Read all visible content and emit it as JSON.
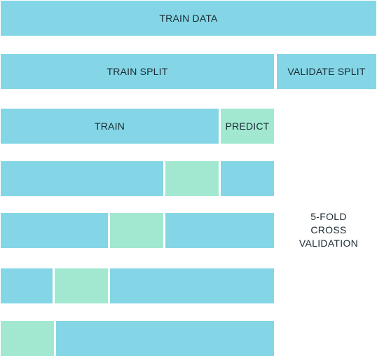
{
  "colors": {
    "train": "#84d6e6",
    "predict": "#a2e8d1",
    "text": "#1b2a33"
  },
  "labels": {
    "train_data": "TRAIN DATA",
    "train_split": "TRAIN SPLIT",
    "validate_split": "VALIDATE SPLIT",
    "train": "TRAIN",
    "predict": "PREDICT",
    "cv_line1": "5-FOLD",
    "cv_line2": "CROSS",
    "cv_line3": "VALIDATION"
  },
  "folds": [
    {
      "fold": 1,
      "predict_segment": 5
    },
    {
      "fold": 2,
      "predict_segment": 4
    },
    {
      "fold": 3,
      "predict_segment": 3
    },
    {
      "fold": 4,
      "predict_segment": 2
    },
    {
      "fold": 5,
      "predict_segment": 1
    }
  ]
}
